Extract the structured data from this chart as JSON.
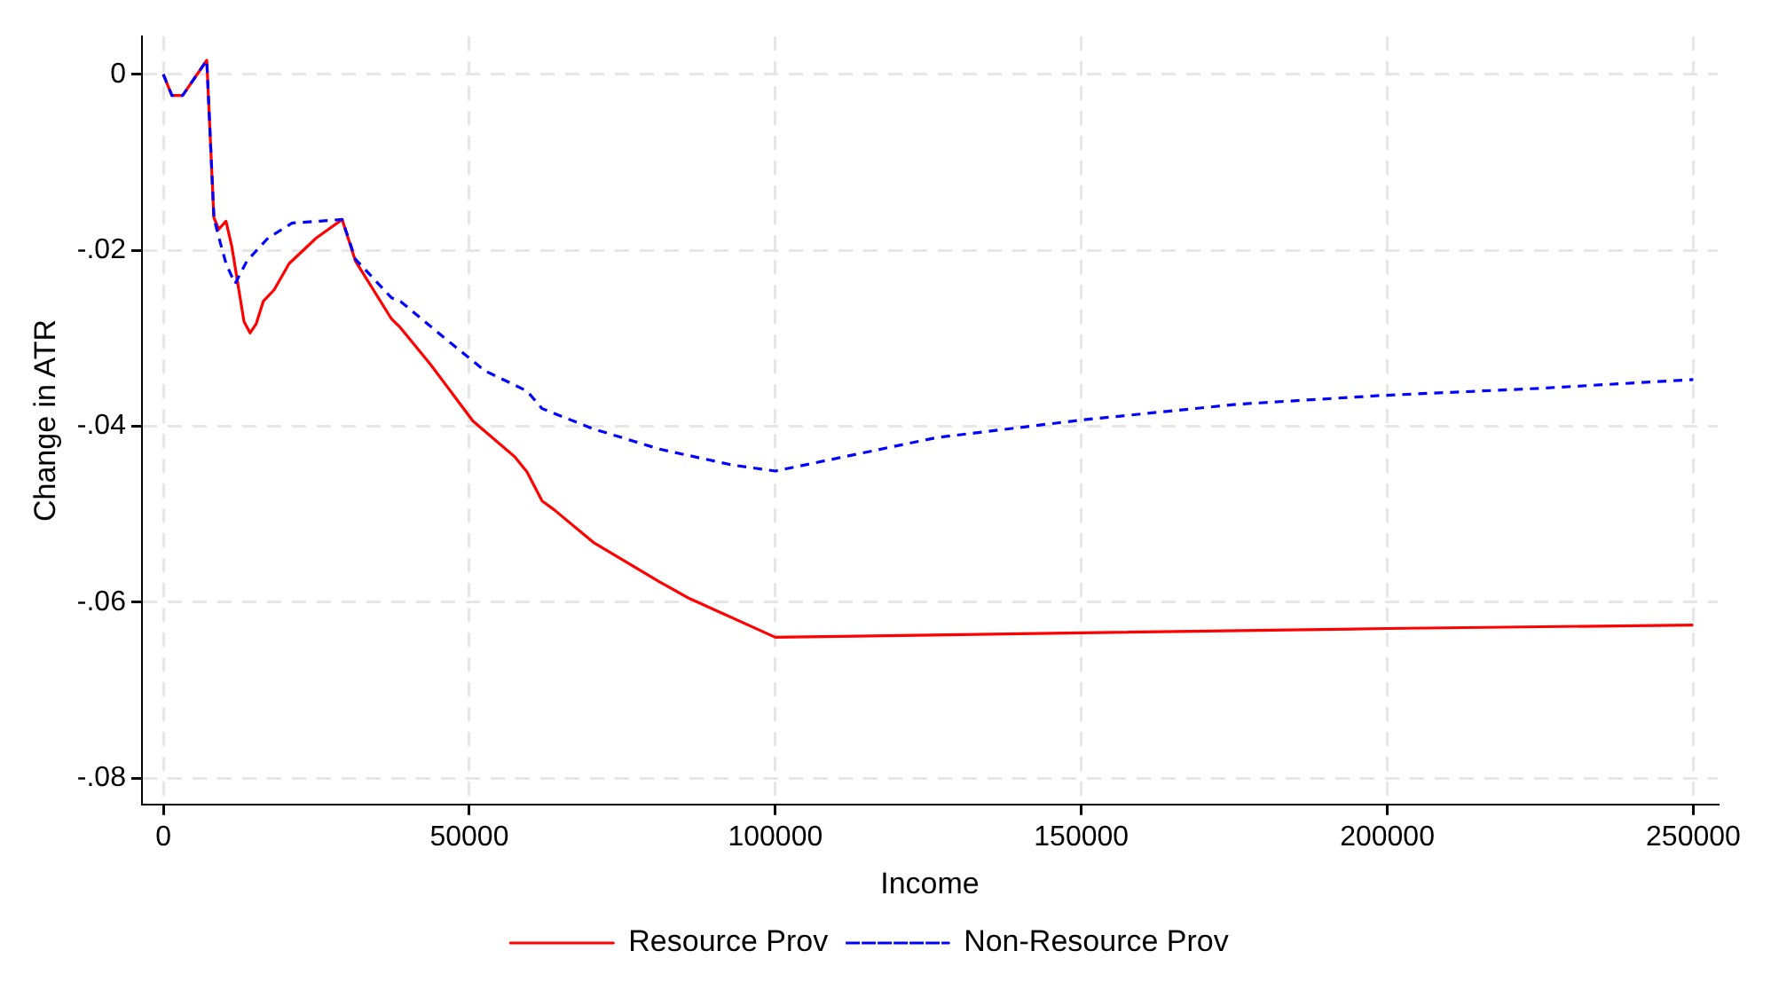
{
  "chart_data": {
    "type": "line",
    "xlabel": "Income",
    "ylabel": "Change in ATR",
    "xlim": [
      -3500,
      254000
    ],
    "ylim": [
      -0.083,
      0.0043
    ],
    "xticks": [
      0,
      50000,
      100000,
      150000,
      200000,
      250000
    ],
    "yticks": [
      {
        "value": 0,
        "label": "0"
      },
      {
        "value": -0.02,
        "label": "-.02"
      },
      {
        "value": -0.04,
        "label": "-.04"
      },
      {
        "value": -0.06,
        "label": "-.06"
      },
      {
        "value": -0.08,
        "label": "-.08"
      }
    ],
    "grid": true,
    "legend": "bottom",
    "series": [
      {
        "name": "Resource Prov",
        "color": "#ff0000",
        "line_style": "solid",
        "x": [
          0,
          1400,
          3150,
          7100,
          8260,
          9060,
          10240,
          11200,
          13180,
          14170,
          15150,
          16330,
          18100,
          20570,
          25000,
          29220,
          31380,
          37280,
          38750,
          43680,
          50570,
          57460,
          59430,
          61890,
          63860,
          70250,
          81070,
          86000,
          100000,
          150000,
          200000,
          250000
        ],
        "values": [
          0,
          -0.0024,
          -0.0024,
          0.0016,
          -0.0163,
          -0.0176,
          -0.0167,
          -0.0196,
          -0.0281,
          -0.0294,
          -0.0284,
          -0.0258,
          -0.0245,
          -0.0215,
          -0.0186,
          -0.0165,
          -0.0212,
          -0.0278,
          -0.0288,
          -0.033,
          -0.0394,
          -0.0435,
          -0.0452,
          -0.0485,
          -0.0495,
          -0.0532,
          -0.0577,
          -0.0596,
          -0.064,
          -0.0635,
          -0.063,
          -0.0626
        ]
      },
      {
        "name": "Non-Resource Prov",
        "color": "#0000ff",
        "line_style": "dashed",
        "x": [
          0,
          1400,
          3150,
          7100,
          8260,
          9060,
          10240,
          11720,
          13670,
          17120,
          21050,
          29220,
          31380,
          37280,
          38750,
          45650,
          52540,
          59430,
          61890,
          70250,
          81070,
          92860,
          100000,
          126300,
          150000,
          175600,
          199200,
          224700,
          250000
        ],
        "values": [
          0,
          -0.0024,
          -0.0024,
          0.0016,
          -0.0163,
          -0.0185,
          -0.0215,
          -0.0238,
          -0.0212,
          -0.0186,
          -0.0169,
          -0.0165,
          -0.021,
          -0.0254,
          -0.0258,
          -0.0298,
          -0.0337,
          -0.036,
          -0.038,
          -0.0403,
          -0.0426,
          -0.0444,
          -0.0451,
          -0.0413,
          -0.0393,
          -0.0375,
          -0.0365,
          -0.0357,
          -0.0347
        ]
      }
    ]
  }
}
